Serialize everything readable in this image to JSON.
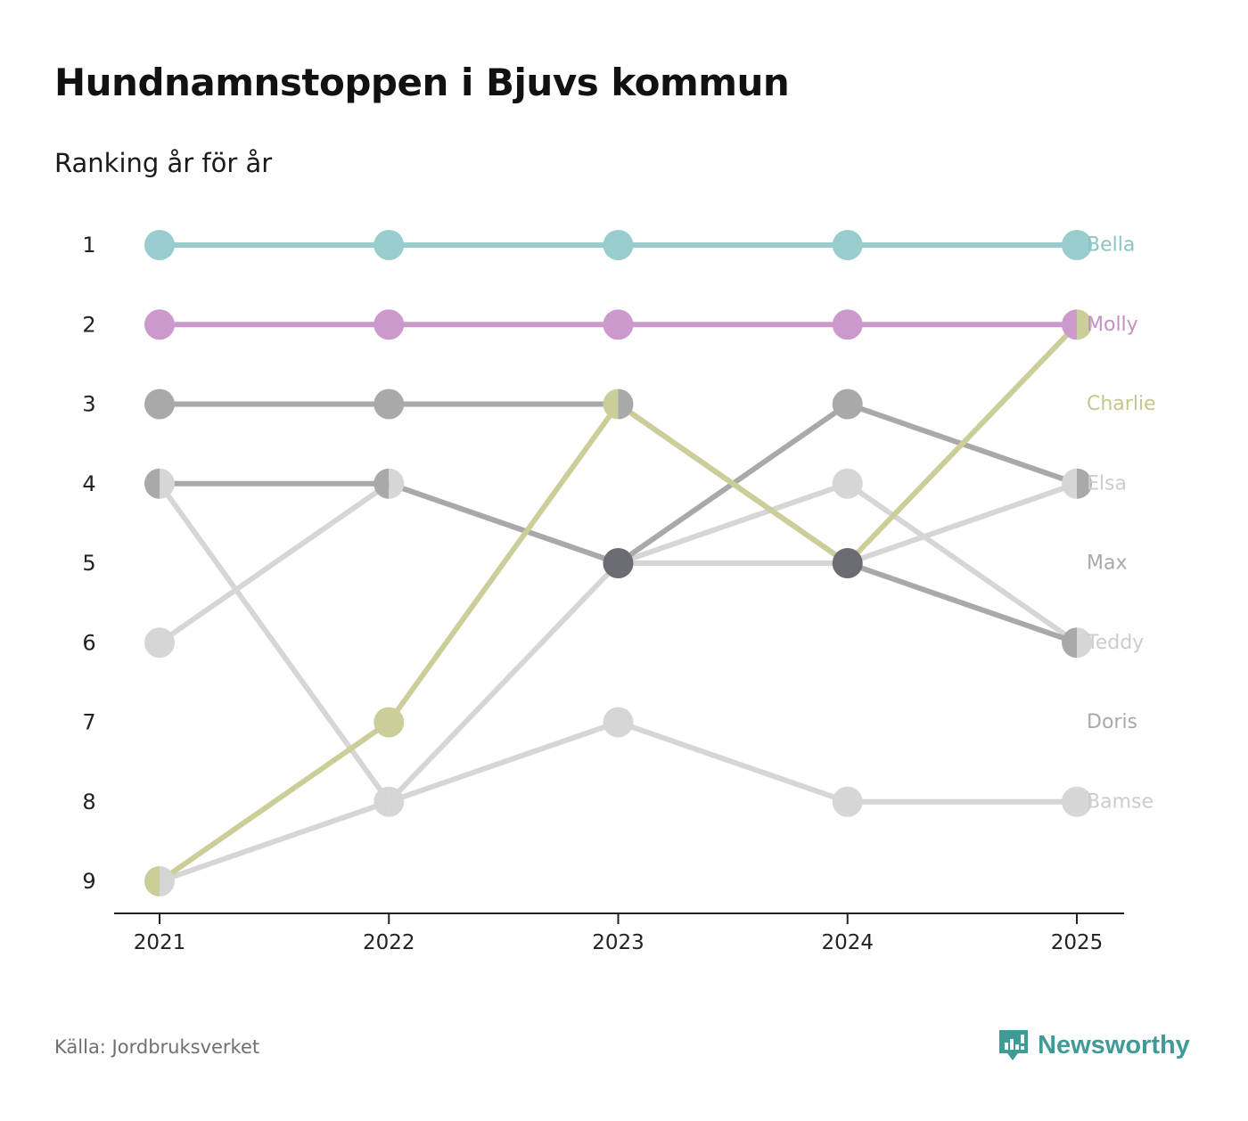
{
  "header": {
    "title": "Hundnamnstoppen i Bjuvs kommun",
    "subtitle": "Ranking år för år"
  },
  "footer": {
    "source": "Källa: Jordbruksverket",
    "brand": "Newsworthy",
    "brand_icon": "newsworthy-logo-icon",
    "brand_color": "#3f9b95"
  },
  "chart_data": {
    "type": "line",
    "title": "Hundnamnstoppen i Bjuvs kommun",
    "subtitle": "Ranking år för år",
    "xlabel": "",
    "ylabel": "",
    "y_reversed": true,
    "ylim": [
      1,
      9
    ],
    "x": [
      "2021",
      "2022",
      "2023",
      "2024",
      "2025"
    ],
    "y_ticks": [
      "1",
      "2",
      "3",
      "4",
      "5",
      "6",
      "7",
      "8",
      "9"
    ],
    "grid": false,
    "series": [
      {
        "name": "Bamse",
        "values": [
          4,
          8,
          7,
          8,
          8
        ],
        "color": "#d6d6d6",
        "label_color": "#cccccc"
      },
      {
        "name": "Teddy",
        "values": [
          6,
          4,
          5,
          4,
          6
        ],
        "color": "#d6d6d6",
        "label_color": "#cccccc"
      },
      {
        "name": "Doris",
        "values": [
          4,
          4,
          5,
          3,
          4
        ],
        "color": "#a9a9a9",
        "label_color": "#a9a9a9"
      },
      {
        "name": "Max",
        "values": [
          3,
          3,
          3,
          5,
          6
        ],
        "color": "#a9a9a9",
        "label_color": "#a9a9a9"
      },
      {
        "name": "Elsa",
        "values": [
          9,
          8,
          5,
          5,
          4
        ],
        "color": "#d6d6d6",
        "label_color": "#cccccc"
      },
      {
        "name": "Charlie",
        "values": [
          9,
          7,
          3,
          5,
          2
        ],
        "color": "#ccce9a",
        "label_color": "#c4c68c"
      },
      {
        "name": "Molly",
        "values": [
          2,
          2,
          2,
          2,
          2
        ],
        "color": "#cc99cc",
        "label_color": "#c48fc4"
      },
      {
        "name": "Bella",
        "values": [
          1,
          1,
          1,
          1,
          1
        ],
        "color": "#99cccc",
        "label_color": "#8cc4c4"
      }
    ],
    "label_order": [
      "Bella",
      "Molly",
      "Charlie",
      "Elsa",
      "Max",
      "Teddy",
      "Doris",
      "Bamse"
    ],
    "overlap_color": "#6b6b73"
  }
}
